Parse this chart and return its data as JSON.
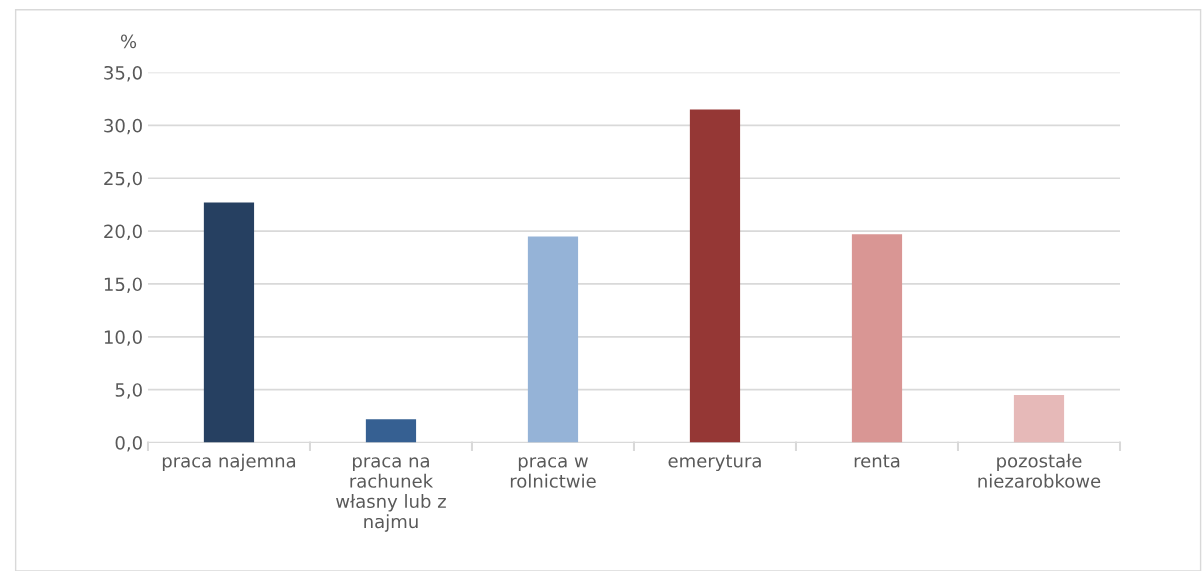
{
  "chart_data": {
    "type": "bar",
    "ylabel": "%",
    "categories": [
      "praca najemna",
      "praca na rachunek własny lub z najmu",
      "praca w rolnictwie",
      "emerytura",
      "renta",
      "pozostałe niezarobkowe"
    ],
    "values": [
      22.7,
      2.2,
      19.5,
      31.5,
      19.7,
      4.5
    ],
    "colors": [
      "#264061",
      "#366092",
      "#95b3d7",
      "#953735",
      "#d99694",
      "#e6b9b8"
    ],
    "ylim": [
      0,
      35
    ],
    "yticks": [
      {
        "value": 0,
        "label": "0,0"
      },
      {
        "value": 5,
        "label": "5,0"
      },
      {
        "value": 10,
        "label": "10,0"
      },
      {
        "value": 15,
        "label": "15,0"
      },
      {
        "value": 20,
        "label": "20,0"
      },
      {
        "value": 25,
        "label": "25,0"
      },
      {
        "value": 30,
        "label": "30,0"
      },
      {
        "value": 35,
        "label": "35,0"
      }
    ],
    "grid": "y"
  }
}
